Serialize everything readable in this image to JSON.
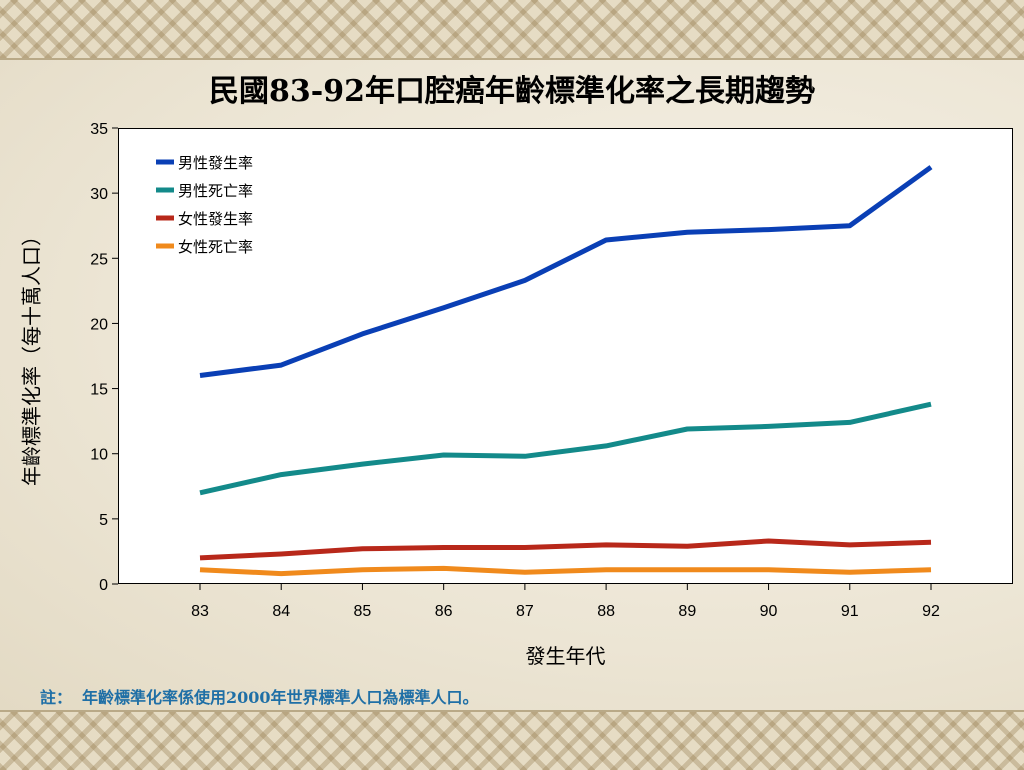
{
  "slide": {
    "note_label": "註：",
    "note_text": "年齡標準化率係使用2000年世界標準人口為標準人口。"
  },
  "chart_data": {
    "type": "line",
    "title": "民國83-92年口腔癌年齡標準化率之長期趨勢",
    "xlabel": "發生年代",
    "ylabel": "年齡標準化率（每十萬人口）",
    "x": [
      "83",
      "84",
      "85",
      "86",
      "87",
      "88",
      "89",
      "90",
      "91",
      "92"
    ],
    "ylim": [
      0,
      35
    ],
    "yticks": [
      "0",
      "5",
      "10",
      "15",
      "20",
      "25",
      "30",
      "35"
    ],
    "grid": false,
    "legend_position": "top-left",
    "series": [
      {
        "name": "男性發生率",
        "color": "#0a3fb5",
        "values": [
          16.0,
          16.8,
          19.2,
          21.2,
          23.3,
          26.4,
          27.0,
          27.2,
          27.5,
          32.0
        ]
      },
      {
        "name": "男性死亡率",
        "color": "#138a8a",
        "values": [
          7.0,
          8.4,
          9.2,
          9.9,
          9.8,
          10.6,
          11.9,
          12.1,
          12.4,
          13.8
        ]
      },
      {
        "name": "女性發生率",
        "color": "#b8281a",
        "values": [
          2.0,
          2.3,
          2.7,
          2.8,
          2.8,
          3.0,
          2.9,
          3.3,
          3.0,
          3.2
        ]
      },
      {
        "name": "女性死亡率",
        "color": "#f08a1c",
        "values": [
          1.1,
          0.8,
          1.1,
          1.2,
          0.9,
          1.1,
          1.1,
          1.1,
          0.9,
          1.1
        ]
      }
    ]
  }
}
